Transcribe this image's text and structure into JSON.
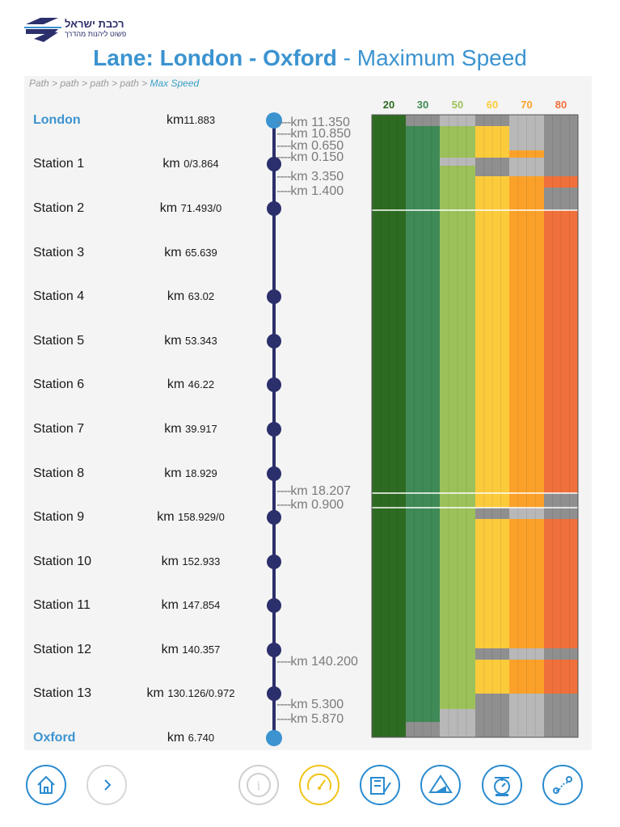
{
  "header": {
    "logo_title": "רכבת ישראל",
    "logo_subtitle": "פשוט ליהנות מהדרך",
    "title_lane": "Lane: London - Oxford",
    "title_suffix": " - Maximum Speed"
  },
  "breadcrumb": {
    "path": "Path > path > path > path > ",
    "current": "Max Speed"
  },
  "stations": [
    {
      "name": "London",
      "km_prefix": "km",
      "km": "11.883"
    },
    {
      "name": "Station 1",
      "km_prefix": "km ",
      "km": "0/3.864"
    },
    {
      "name": "Station 2",
      "km_prefix": "km ",
      "km": "71.493/0"
    },
    {
      "name": "Station 3",
      "km_prefix": "km ",
      "km": "65.639"
    },
    {
      "name": "Station 4",
      "km_prefix": "km ",
      "km": "63.02"
    },
    {
      "name": "Station 5",
      "km_prefix": "km ",
      "km": "53.343"
    },
    {
      "name": "Station 6",
      "km_prefix": "km ",
      "km": "46.22"
    },
    {
      "name": "Station 7",
      "km_prefix": "km ",
      "km": "39.917"
    },
    {
      "name": "Station 8",
      "km_prefix": "km ",
      "km": "18.929"
    },
    {
      "name": "Station 9",
      "km_prefix": "km ",
      "km": "158.929/0"
    },
    {
      "name": "Station 10",
      "km_prefix": "km ",
      "km": "152.933"
    },
    {
      "name": "Station 11",
      "km_prefix": "km ",
      "km": "147.854"
    },
    {
      "name": "Station 12",
      "km_prefix": "km ",
      "km": "140.357"
    },
    {
      "name": "Station 13",
      "km_prefix": "km ",
      "km": "130.126/0.972"
    },
    {
      "name": "Oxford",
      "km_prefix": "km ",
      "km": "6.740"
    }
  ],
  "markers": [
    "km 11.350",
    "km 10.850",
    "km 0.650",
    "km 0.150",
    "km 3.350",
    "km 1.400",
    "km 18.207",
    "km 0.900",
    "km 140.200",
    "km 5.300",
    "km 5.870"
  ],
  "chart_data": {
    "type": "heatmap",
    "title": "Maximum Speed",
    "speed_categories": [
      "20",
      "30",
      "50",
      "60",
      "70",
      "80"
    ],
    "category_colors": [
      "#2e6b22",
      "#3f8a56",
      "#9cc15a",
      "#fccb3c",
      "#fba12a",
      "#ef703a"
    ],
    "note": "Speed band rows per segment; gray means speed not permitted in that band"
  },
  "colors": {
    "accent": "#3b93d0",
    "navy": "#2b2f6b",
    "gray": "#b6b6b6"
  },
  "nav": {
    "icons": [
      "home-icon",
      "next-icon",
      "info-icon",
      "speedometer-icon",
      "station-edit-icon",
      "slope-icon",
      "scale-icon",
      "route-icon"
    ]
  }
}
